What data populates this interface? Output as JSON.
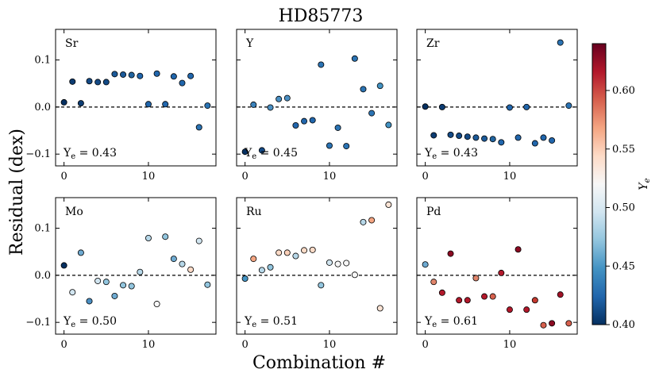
{
  "chart_data": {
    "type": "scatter",
    "title": "HD85773",
    "xlabel": "Combination #",
    "ylabel": "Residual (dex)",
    "xlim": [
      -1,
      18
    ],
    "ylim": [
      -0.125,
      0.165
    ],
    "xticks": [
      0,
      10
    ],
    "xtick_labels": [
      "0",
      "10"
    ],
    "yticks": [
      -0.1,
      0.0,
      0.1
    ],
    "ytick_labels": [
      "−0.1",
      "0.0",
      "0.1"
    ],
    "reference_line": {
      "y": 0.0,
      "style": "dashed"
    },
    "colorbar": {
      "label": "Y_e",
      "label_base": "Y",
      "label_sub": "e",
      "range": [
        0.4,
        0.64
      ],
      "ticks": [
        0.4,
        0.45,
        0.5,
        0.55,
        0.6
      ],
      "tick_labels": [
        "0.40",
        "0.45",
        "0.50",
        "0.55",
        "0.60"
      ],
      "colormap": "RdBu_r",
      "colors": [
        "#053061",
        "#2166ac",
        "#4393c3",
        "#92c5de",
        "#d1e5f0",
        "#f7f7f7",
        "#fddbc7",
        "#f4a582",
        "#d6604d",
        "#b2182b",
        "#67001f"
      ]
    },
    "panels": [
      {
        "element": "Sr",
        "ye_label": "Y",
        "ye_sub": "e",
        "ye_value": " = 0.43",
        "ye": 0.43,
        "x": [
          0,
          1,
          2,
          3,
          4,
          5,
          6,
          7,
          8,
          9,
          10,
          11,
          12,
          13,
          14,
          15,
          16,
          17
        ],
        "y": [
          0.01,
          0.054,
          0.008,
          0.055,
          0.053,
          0.053,
          0.07,
          0.069,
          0.068,
          0.066,
          0.006,
          0.071,
          0.006,
          0.065,
          0.051,
          0.066,
          -0.043,
          0.003
        ]
      },
      {
        "element": "Y",
        "ye_label": "Y",
        "ye_sub": "e",
        "ye_value": " = 0.45",
        "ye": 0.45,
        "x": [
          0,
          1,
          2,
          3,
          4,
          5,
          6,
          7,
          8,
          9,
          10,
          11,
          12,
          13,
          14,
          15,
          16,
          17
        ],
        "y": [
          -0.095,
          0.005,
          -0.092,
          -0.001,
          0.017,
          0.019,
          -0.039,
          -0.03,
          -0.028,
          0.09,
          -0.082,
          -0.044,
          -0.083,
          0.103,
          0.038,
          -0.013,
          0.045,
          -0.038
        ]
      },
      {
        "element": "Zr",
        "ye_label": "Y",
        "ye_sub": "e",
        "ye_value": " = 0.43",
        "ye": 0.43,
        "x": [
          0,
          1,
          2,
          3,
          4,
          5,
          6,
          7,
          8,
          9,
          10,
          11,
          12,
          13,
          14,
          15,
          16,
          17
        ],
        "y": [
          0.001,
          -0.06,
          0.0,
          -0.059,
          -0.061,
          -0.063,
          -0.065,
          -0.067,
          -0.068,
          -0.075,
          -0.001,
          -0.065,
          0.0,
          -0.077,
          -0.065,
          -0.071,
          0.137,
          0.003
        ]
      },
      {
        "element": "Mo",
        "ye_label": "Y",
        "ye_sub": "e",
        "ye_value": " = 0.50",
        "ye": 0.5,
        "x": [
          0,
          1,
          2,
          3,
          4,
          5,
          6,
          7,
          8,
          9,
          10,
          11,
          12,
          13,
          14,
          15,
          16,
          17
        ],
        "y": [
          0.021,
          -0.036,
          0.048,
          -0.055,
          -0.012,
          -0.014,
          -0.044,
          -0.021,
          -0.023,
          0.007,
          0.079,
          -0.061,
          0.082,
          0.035,
          0.024,
          0.012,
          0.073,
          -0.02
        ]
      },
      {
        "element": "Ru",
        "ye_label": "Y",
        "ye_sub": "e",
        "ye_value": " = 0.51",
        "ye": 0.51,
        "x": [
          0,
          1,
          2,
          3,
          4,
          5,
          6,
          7,
          8,
          9,
          10,
          11,
          12,
          13,
          14,
          15,
          16,
          17
        ],
        "y": [
          -0.007,
          0.035,
          0.011,
          0.017,
          0.048,
          0.048,
          0.041,
          0.053,
          0.054,
          -0.021,
          0.027,
          0.024,
          0.026,
          0.001,
          0.113,
          0.117,
          -0.07,
          0.15
        ]
      },
      {
        "element": "Pd",
        "ye_label": "Y",
        "ye_sub": "e",
        "ye_value": " = 0.61",
        "ye": 0.61,
        "x": [
          0,
          1,
          2,
          3,
          4,
          5,
          6,
          7,
          8,
          9,
          10,
          11,
          12,
          13,
          14,
          15,
          16,
          17
        ],
        "y": [
          0.023,
          -0.014,
          -0.037,
          0.046,
          -0.053,
          -0.053,
          -0.006,
          -0.045,
          -0.045,
          0.005,
          -0.073,
          0.055,
          -0.073,
          -0.053,
          -0.106,
          -0.102,
          -0.041,
          -0.102
        ]
      }
    ],
    "point_colors": [
      [
        "#053061",
        "#0d3c72",
        "#0d3c72",
        "#144a86",
        "#144a86",
        "#144a86",
        "#1c5a99",
        "#1c5a99",
        "#21649f",
        "#2166ac",
        "#2166ac",
        "#2166ac",
        "#2166ac",
        "#2166ac",
        "#2166ac",
        "#2166ac",
        "#2b73b3",
        "#2b73b3"
      ],
      [
        "#053061",
        "#3b82bb",
        "#144a86",
        "#4a8fc3",
        "#4a8fc3",
        "#4a8fc3",
        "#2166ac",
        "#2166ac",
        "#2166ac",
        "#2b73b3",
        "#2b73b3",
        "#2b73b3",
        "#2b73b3",
        "#2b73b3",
        "#2b73b3",
        "#2b73b3",
        "#4393c3",
        "#4393c3"
      ],
      [
        "#053061",
        "#0d3c72",
        "#0d3c72",
        "#144a86",
        "#144a86",
        "#144a86",
        "#1c5a99",
        "#1c5a99",
        "#21649f",
        "#2166ac",
        "#2166ac",
        "#2166ac",
        "#2166ac",
        "#2166ac",
        "#2166ac",
        "#2166ac",
        "#2b73b3",
        "#2b73b3"
      ],
      [
        "#053061",
        "#d1e5f0",
        "#6eaad1",
        "#4a8fc3",
        "#d1e5f0",
        "#92c5de",
        "#6eaad1",
        "#92c5de",
        "#92c5de",
        "#b6d7e8",
        "#b6d7e8",
        "#f7f7f7",
        "#92c5de",
        "#6eaad1",
        "#b6d7e8",
        "#fddbc7",
        "#d1e5f0",
        "#92c5de"
      ],
      [
        "#4393c3",
        "#f4a582",
        "#b6d7e8",
        "#92c5de",
        "#fddbc7",
        "#fbd0b9",
        "#b6d7e8",
        "#fddbc7",
        "#fddbc7",
        "#92c5de",
        "#d1e5f0",
        "#f7f7f7",
        "#f7f7f7",
        "#f7f7f7",
        "#b6d7e8",
        "#f4a582",
        "#fbe3d4",
        "#fbe3d4"
      ],
      [
        "#6eaad1",
        "#e0856b",
        "#b2182b",
        "#8b0a22",
        "#b2182b",
        "#b2182b",
        "#e0856b",
        "#b2182b",
        "#d6604d",
        "#b2182b",
        "#b2182b",
        "#8b0a22",
        "#b2182b",
        "#c4392f",
        "#d6604d",
        "#8b0a22",
        "#a11226",
        "#d6604d"
      ]
    ]
  }
}
